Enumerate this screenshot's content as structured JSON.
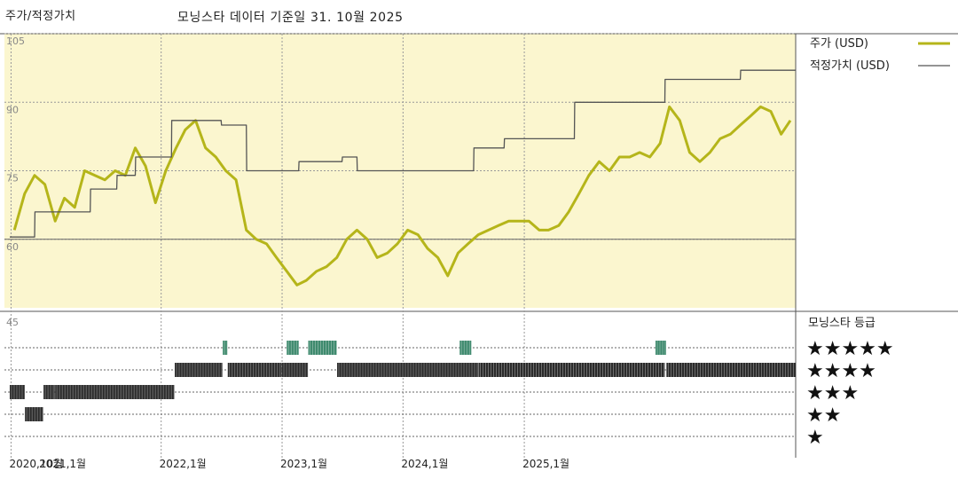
{
  "header": {
    "title": "주가/적정가치",
    "subtitle": "모닝스타 데이터 기준일 31. 10월 2025"
  },
  "chart_data": {
    "type": "line",
    "ylim": [
      45,
      105
    ],
    "yticks": [
      60,
      75,
      90,
      105
    ],
    "x_ticks": [
      "2020,10월",
      "2021,1월",
      "2022,1월",
      "2023,1월",
      "2024,1월",
      "2025,1월"
    ],
    "series": [
      {
        "name": "주가 (USD)",
        "color": "#b5b51a",
        "points": [
          [
            "2020-10-15",
            62
          ],
          [
            "2020-11-15",
            70
          ],
          [
            "2020-12-15",
            74
          ],
          [
            "2021-01-15",
            72
          ],
          [
            "2021-02-15",
            64
          ],
          [
            "2021-03-15",
            69
          ],
          [
            "2021-04-15",
            67
          ],
          [
            "2021-05-15",
            75
          ],
          [
            "2021-06-15",
            74
          ],
          [
            "2021-07-15",
            73
          ],
          [
            "2021-08-15",
            75
          ],
          [
            "2021-09-15",
            74
          ],
          [
            "2021-10-15",
            80
          ],
          [
            "2021-11-15",
            76
          ],
          [
            "2021-12-15",
            68
          ],
          [
            "2022-01-15",
            75
          ],
          [
            "2022-02-15",
            80
          ],
          [
            "2022-03-15",
            84
          ],
          [
            "2022-04-15",
            86
          ],
          [
            "2022-05-15",
            80
          ],
          [
            "2022-06-15",
            78
          ],
          [
            "2022-07-15",
            75
          ],
          [
            "2022-08-15",
            73
          ],
          [
            "2022-09-15",
            62
          ],
          [
            "2022-10-15",
            60
          ],
          [
            "2022-11-15",
            59
          ],
          [
            "2022-12-15",
            56
          ],
          [
            "2023-01-15",
            53
          ],
          [
            "2023-02-15",
            50
          ],
          [
            "2023-03-15",
            51
          ],
          [
            "2023-04-15",
            53
          ],
          [
            "2023-05-15",
            54
          ],
          [
            "2023-06-15",
            56
          ],
          [
            "2023-07-15",
            60
          ],
          [
            "2023-08-15",
            62
          ],
          [
            "2023-09-15",
            60
          ],
          [
            "2023-10-15",
            56
          ],
          [
            "2023-11-15",
            57
          ],
          [
            "2023-12-15",
            59
          ],
          [
            "2024-01-15",
            62
          ],
          [
            "2024-02-15",
            61
          ],
          [
            "2024-03-15",
            58
          ],
          [
            "2024-04-15",
            56
          ],
          [
            "2024-05-15",
            52
          ],
          [
            "2024-06-15",
            57
          ],
          [
            "2024-07-15",
            59
          ],
          [
            "2024-08-15",
            61
          ],
          [
            "2024-09-15",
            62
          ],
          [
            "2024-10-15",
            63
          ],
          [
            "2024-11-15",
            64
          ],
          [
            "2024-12-15",
            64
          ],
          [
            "2025-01-15",
            64
          ],
          [
            "2025-02-15",
            62
          ],
          [
            "2025-03-15",
            62
          ],
          [
            "2025-04-15",
            63
          ],
          [
            "2025-05-15",
            66
          ],
          [
            "2025-06-15",
            70
          ],
          [
            "2025-07-15",
            74
          ],
          [
            "2025-08-15",
            77
          ],
          [
            "2025-09-15",
            75
          ],
          [
            "2025-10-15",
            78
          ],
          [
            "2025-11-15",
            78
          ],
          [
            "2025-12-15",
            79
          ],
          [
            "2026-01-15",
            78
          ],
          [
            "2026-02-15",
            81
          ],
          [
            "2026-03-15",
            89
          ],
          [
            "2026-04-15",
            86
          ],
          [
            "2026-05-15",
            79
          ],
          [
            "2026-06-15",
            77
          ],
          [
            "2026-07-15",
            79
          ],
          [
            "2026-08-15",
            82
          ],
          [
            "2026-09-15",
            83
          ],
          [
            "2026-10-15",
            85
          ],
          [
            "2026-11-15",
            87
          ],
          [
            "2026-12-15",
            89
          ],
          [
            "2027-01-15",
            88
          ],
          [
            "2027-02-15",
            83
          ],
          [
            "2027-03-15",
            86
          ]
        ]
      },
      {
        "name": "적정가치 (USD)",
        "color": "#555555",
        "step": true,
        "points": [
          [
            "2020-10-01",
            60.5
          ],
          [
            "2020-12-15",
            60.5
          ],
          [
            "2020-12-16",
            66
          ],
          [
            "2021-06-01",
            66
          ],
          [
            "2021-06-02",
            71
          ],
          [
            "2021-08-20",
            71
          ],
          [
            "2021-08-21",
            74
          ],
          [
            "2021-10-15",
            74
          ],
          [
            "2021-10-16",
            78
          ],
          [
            "2022-02-01",
            78
          ],
          [
            "2022-02-02",
            86
          ],
          [
            "2022-07-01",
            86
          ],
          [
            "2022-07-02",
            85
          ],
          [
            "2022-09-15",
            85
          ],
          [
            "2022-09-16",
            75
          ],
          [
            "2023-02-20",
            75
          ],
          [
            "2023-02-21",
            77
          ],
          [
            "2023-07-01",
            77
          ],
          [
            "2023-07-02",
            78
          ],
          [
            "2023-08-15",
            78
          ],
          [
            "2023-08-16",
            75
          ],
          [
            "2024-08-01",
            75
          ],
          [
            "2024-08-02",
            80
          ],
          [
            "2024-11-01",
            80
          ],
          [
            "2024-11-02",
            82
          ],
          [
            "2025-06-01",
            82
          ],
          [
            "2025-06-02",
            90
          ],
          [
            "2026-03-01",
            90
          ],
          [
            "2026-03-02",
            95
          ],
          [
            "2026-10-15",
            95
          ],
          [
            "2026-10-16",
            97
          ],
          [
            "2027-03-31",
            97
          ]
        ]
      }
    ],
    "rating_legend_title": "모닝스타 등급",
    "rating_levels": [
      "★★★★★",
      "★★★★",
      "★★★",
      "★★",
      "★"
    ],
    "rating_segments": [
      {
        "from": "2020-10-01",
        "to": "2020-11-15",
        "stars": 3
      },
      {
        "from": "2020-11-16",
        "to": "2021-01-10",
        "stars": 2
      },
      {
        "from": "2021-01-11",
        "to": "2021-02-14",
        "stars": 3
      },
      {
        "from": "2021-02-15",
        "to": "2022-02-10",
        "stars": 3
      },
      {
        "from": "2022-02-11",
        "to": "2022-07-05",
        "stars": 4
      },
      {
        "from": "2022-07-06",
        "to": "2022-07-20",
        "stars": 5
      },
      {
        "from": "2022-07-21",
        "to": "2022-12-31",
        "stars": 4
      },
      {
        "from": "2023-01-01",
        "to": "2023-03-20",
        "stars": 4
      },
      {
        "from": "2023-01-15",
        "to": "2023-02-20",
        "stars": 5
      },
      {
        "from": "2023-03-21",
        "to": "2023-06-15",
        "stars": 5
      },
      {
        "from": "2023-06-16",
        "to": "2024-08-15",
        "stars": 4
      },
      {
        "from": "2024-06-20",
        "to": "2024-07-25",
        "stars": 5
      },
      {
        "from": "2024-08-16",
        "to": "2026-03-01",
        "stars": 4
      },
      {
        "from": "2026-02-01",
        "to": "2026-03-05",
        "stars": 5
      },
      {
        "from": "2026-03-06",
        "to": "2027-03-31",
        "stars": 4
      }
    ],
    "rating_colors": {
      "5": "#3f8a6e",
      "default": "#2b2b2b"
    }
  }
}
